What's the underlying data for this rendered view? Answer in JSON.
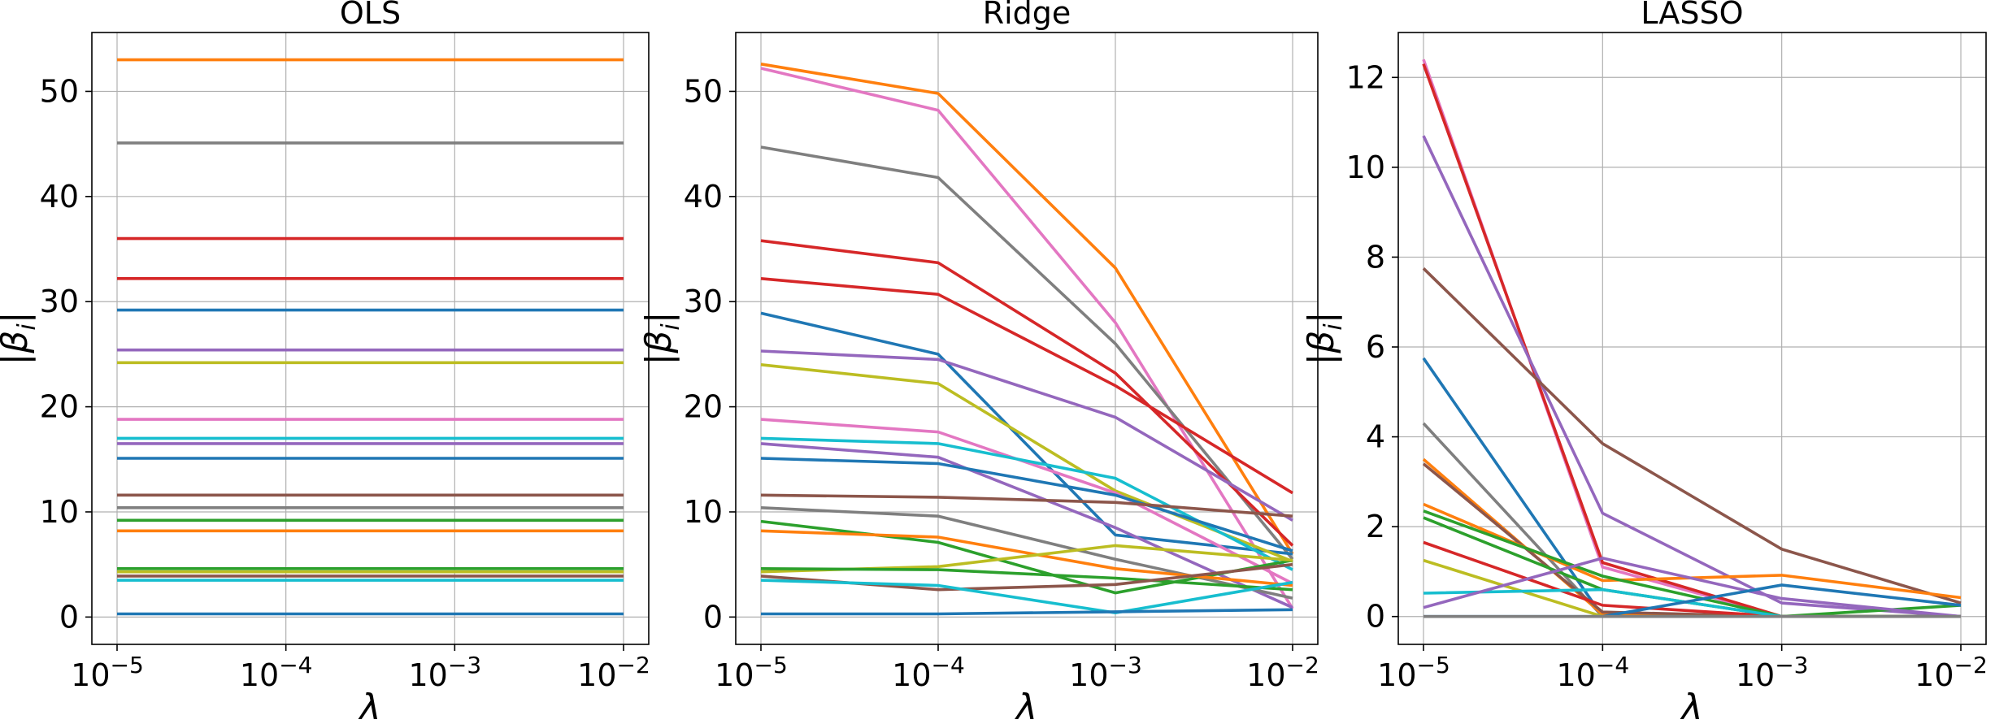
{
  "chart_data": [
    {
      "type": "line",
      "title": "OLS",
      "xlabel": "λ",
      "ylabel": "|β_i|",
      "x": [
        1e-05,
        0.0001,
        0.001,
        0.01
      ],
      "x_ticks": [
        [
          "10",
          "−5"
        ],
        [
          "10",
          "−4"
        ],
        [
          "10",
          "−3"
        ],
        [
          "10",
          "−2"
        ]
      ],
      "x_scale": "log",
      "ylim": [
        -2.6,
        55.6
      ],
      "y_ticks": [
        0,
        10,
        20,
        30,
        40,
        50
      ],
      "grid": true,
      "series": [
        {
          "color": "#ff7f0e",
          "values": [
            53.0,
            53.0,
            53.0,
            53.0
          ]
        },
        {
          "color": "#7f7f7f",
          "values": [
            45.1,
            45.1,
            45.1,
            45.1
          ]
        },
        {
          "color": "#d62728",
          "values": [
            36.0,
            36.0,
            36.0,
            36.0
          ]
        },
        {
          "color": "#d62728",
          "values": [
            32.2,
            32.2,
            32.2,
            32.2
          ]
        },
        {
          "color": "#1f77b4",
          "values": [
            29.2,
            29.2,
            29.2,
            29.2
          ]
        },
        {
          "color": "#9467bd",
          "values": [
            25.4,
            25.4,
            25.4,
            25.4
          ]
        },
        {
          "color": "#bcbd22",
          "values": [
            24.2,
            24.2,
            24.2,
            24.2
          ]
        },
        {
          "color": "#e377c2",
          "values": [
            18.8,
            18.8,
            18.8,
            18.8
          ]
        },
        {
          "color": "#17becf",
          "values": [
            17.0,
            17.0,
            17.0,
            17.0
          ]
        },
        {
          "color": "#9467bd",
          "values": [
            16.5,
            16.5,
            16.5,
            16.5
          ]
        },
        {
          "color": "#1f77b4",
          "values": [
            15.1,
            15.1,
            15.1,
            15.1
          ]
        },
        {
          "color": "#8c564b",
          "values": [
            11.6,
            11.6,
            11.6,
            11.6
          ]
        },
        {
          "color": "#7f7f7f",
          "values": [
            10.4,
            10.4,
            10.4,
            10.4
          ]
        },
        {
          "color": "#2ca02c",
          "values": [
            9.2,
            9.2,
            9.2,
            9.2
          ]
        },
        {
          "color": "#ff7f0e",
          "values": [
            8.2,
            8.2,
            8.2,
            8.2
          ]
        },
        {
          "color": "#2ca02c",
          "values": [
            4.6,
            4.6,
            4.6,
            4.6
          ]
        },
        {
          "color": "#bcbd22",
          "values": [
            4.3,
            4.3,
            4.3,
            4.3
          ]
        },
        {
          "color": "#8c564b",
          "values": [
            3.9,
            3.9,
            3.9,
            3.9
          ]
        },
        {
          "color": "#17becf",
          "values": [
            3.5,
            3.5,
            3.5,
            3.5
          ]
        },
        {
          "color": "#1f77b4",
          "values": [
            0.3,
            0.3,
            0.3,
            0.3
          ]
        }
      ]
    },
    {
      "type": "line",
      "title": "Ridge",
      "xlabel": "λ",
      "ylabel": "|β_i|",
      "x": [
        1e-05,
        0.0001,
        0.001,
        0.01
      ],
      "x_ticks": [
        [
          "10",
          "−5"
        ],
        [
          "10",
          "−4"
        ],
        [
          "10",
          "−3"
        ],
        [
          "10",
          "−2"
        ]
      ],
      "x_scale": "log",
      "ylim": [
        -2.6,
        55.6
      ],
      "y_ticks": [
        0,
        10,
        20,
        30,
        40,
        50
      ],
      "grid": true,
      "series": [
        {
          "color": "#ff7f0e",
          "values": [
            52.6,
            49.8,
            33.2,
            6.0
          ]
        },
        {
          "color": "#e377c2",
          "values": [
            52.2,
            48.2,
            28.0,
            0.8
          ]
        },
        {
          "color": "#7f7f7f",
          "values": [
            44.7,
            41.8,
            26.0,
            5.5
          ]
        },
        {
          "color": "#d62728",
          "values": [
            35.8,
            33.7,
            23.2,
            6.8
          ]
        },
        {
          "color": "#d62728",
          "values": [
            32.2,
            30.7,
            22.0,
            11.8
          ]
        },
        {
          "color": "#1f77b4",
          "values": [
            28.9,
            25.0,
            7.8,
            6.0
          ]
        },
        {
          "color": "#9467bd",
          "values": [
            25.3,
            24.5,
            19.0,
            9.2
          ]
        },
        {
          "color": "#bcbd22",
          "values": [
            24.0,
            22.2,
            12.0,
            5.3
          ]
        },
        {
          "color": "#e377c2",
          "values": [
            18.8,
            17.6,
            11.8,
            3.2
          ]
        },
        {
          "color": "#17becf",
          "values": [
            17.0,
            16.5,
            13.2,
            4.5
          ]
        },
        {
          "color": "#9467bd",
          "values": [
            16.5,
            15.2,
            8.5,
            0.9
          ]
        },
        {
          "color": "#1f77b4",
          "values": [
            15.1,
            14.6,
            11.6,
            6.3
          ]
        },
        {
          "color": "#8c564b",
          "values": [
            11.6,
            11.4,
            10.9,
            9.6
          ]
        },
        {
          "color": "#7f7f7f",
          "values": [
            10.4,
            9.6,
            5.5,
            1.8
          ]
        },
        {
          "color": "#2ca02c",
          "values": [
            9.1,
            7.1,
            2.3,
            5.4
          ]
        },
        {
          "color": "#ff7f0e",
          "values": [
            8.2,
            7.6,
            4.6,
            3.0
          ]
        },
        {
          "color": "#bcbd22",
          "values": [
            4.3,
            4.8,
            6.8,
            5.4
          ]
        },
        {
          "color": "#2ca02c",
          "values": [
            4.6,
            4.5,
            3.7,
            2.6
          ]
        },
        {
          "color": "#8c564b",
          "values": [
            3.9,
            2.6,
            3.1,
            5.0
          ]
        },
        {
          "color": "#17becf",
          "values": [
            3.5,
            3.0,
            0.4,
            3.3
          ]
        },
        {
          "color": "#1f77b4",
          "values": [
            0.3,
            0.3,
            0.5,
            0.7
          ]
        }
      ]
    },
    {
      "type": "line",
      "title": "LASSO",
      "xlabel": "λ",
      "ylabel": "|β_i|",
      "x": [
        1e-05,
        0.0001,
        0.001,
        0.01
      ],
      "x_ticks": [
        [
          "10",
          "−5"
        ],
        [
          "10",
          "−4"
        ],
        [
          "10",
          "−3"
        ],
        [
          "10",
          "−2"
        ]
      ],
      "x_scale": "log",
      "ylim": [
        -0.62,
        13.0
      ],
      "y_ticks": [
        0,
        2,
        4,
        6,
        8,
        10,
        12
      ],
      "grid": true,
      "series": [
        {
          "color": "#e377c2",
          "values": [
            12.4,
            1.1,
            0.0,
            0.0
          ]
        },
        {
          "color": "#d62728",
          "values": [
            12.3,
            1.2,
            0.0,
            0.0
          ]
        },
        {
          "color": "#9467bd",
          "values": [
            10.7,
            2.3,
            0.3,
            0.0
          ]
        },
        {
          "color": "#8c564b",
          "values": [
            7.75,
            3.85,
            1.5,
            0.3
          ]
        },
        {
          "color": "#1f77b4",
          "values": [
            5.75,
            0.0,
            0.0,
            0.0
          ]
        },
        {
          "color": "#7f7f7f",
          "values": [
            4.3,
            0.0,
            0.0,
            0.0
          ]
        },
        {
          "color": "#ff7f0e",
          "values": [
            3.5,
            0.05,
            0.0,
            0.0
          ]
        },
        {
          "color": "#8c564b",
          "values": [
            3.4,
            0.1,
            0.0,
            0.0
          ]
        },
        {
          "color": "#ff7f0e",
          "values": [
            2.5,
            0.8,
            0.92,
            0.42
          ]
        },
        {
          "color": "#2ca02c",
          "values": [
            2.35,
            0.9,
            0.0,
            0.0
          ]
        },
        {
          "color": "#2ca02c",
          "values": [
            2.2,
            0.6,
            0.0,
            0.25
          ]
        },
        {
          "color": "#d62728",
          "values": [
            1.65,
            0.25,
            0.0,
            0.0
          ]
        },
        {
          "color": "#bcbd22",
          "values": [
            1.25,
            0.0,
            0.0,
            0.0
          ]
        },
        {
          "color": "#17becf",
          "values": [
            0.52,
            0.6,
            0.0,
            0.0
          ]
        },
        {
          "color": "#9467bd",
          "values": [
            0.2,
            1.3,
            0.4,
            0.0
          ]
        },
        {
          "color": "#1f77b4",
          "values": [
            0.0,
            0.0,
            0.7,
            0.25
          ]
        },
        {
          "color": "#7f7f7f",
          "values": [
            0.0,
            0.0,
            0.0,
            0.0
          ]
        }
      ]
    }
  ]
}
